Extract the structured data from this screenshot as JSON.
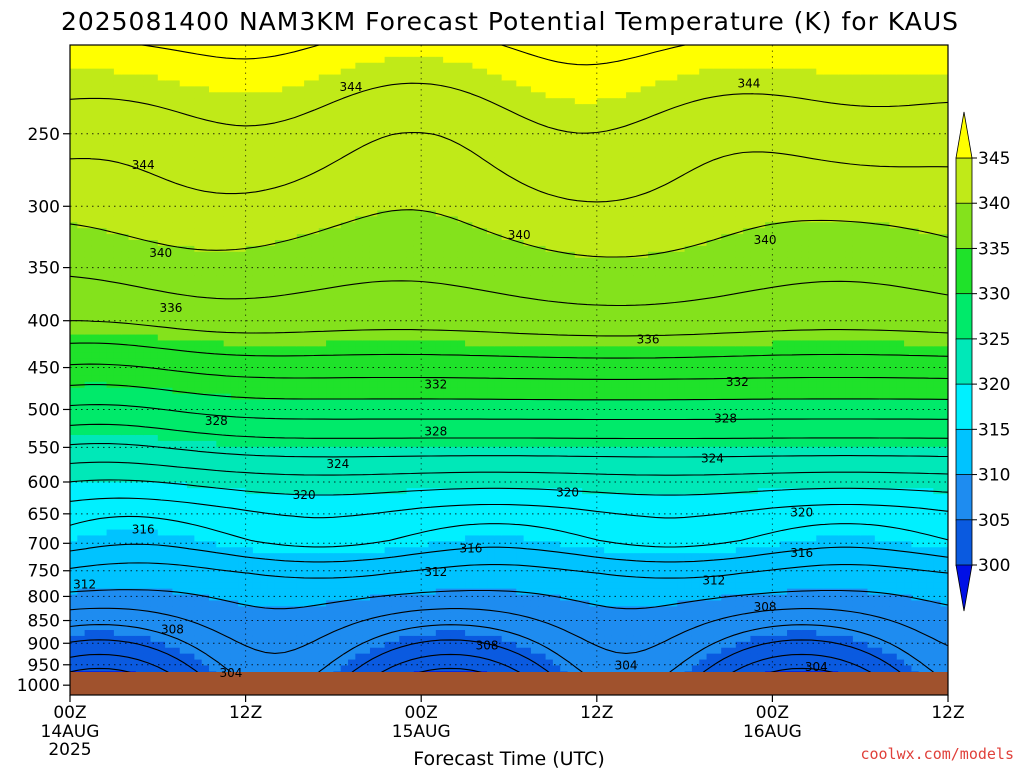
{
  "chart_data": {
    "type": "heatmap",
    "title": "2025081400 NAM3KM Forecast Potential Temperature (K) for KAUS",
    "xlabel": "Forecast Time (UTC)",
    "ylabel": "",
    "x_ticks": [
      {
        "hour": 0,
        "label": "00Z",
        "sub1": "14AUG",
        "sub2": "2025"
      },
      {
        "hour": 12,
        "label": "12Z",
        "sub1": "",
        "sub2": ""
      },
      {
        "hour": 24,
        "label": "00Z",
        "sub1": "15AUG",
        "sub2": ""
      },
      {
        "hour": 36,
        "label": "12Z",
        "sub1": "",
        "sub2": ""
      },
      {
        "hour": 48,
        "label": "00Z",
        "sub1": "16AUG",
        "sub2": ""
      },
      {
        "hour": 60,
        "label": "12Z",
        "sub1": "",
        "sub2": ""
      }
    ],
    "xlim": [
      0,
      60
    ],
    "y_scale": "log-pressure, inverted",
    "ylim": [
      1025,
      200
    ],
    "y_ticks": [
      250,
      300,
      350,
      400,
      450,
      500,
      550,
      600,
      650,
      700,
      750,
      800,
      850,
      900,
      950,
      1000
    ],
    "grid": true,
    "colorbar": {
      "position": "right",
      "ticks": [
        300,
        305,
        310,
        315,
        320,
        325,
        330,
        335,
        340,
        345
      ],
      "colors": [
        "#0010e6",
        "#0a5ae0",
        "#1e8cf0",
        "#00c3ff",
        "#00f0ff",
        "#00e8b8",
        "#00ea6a",
        "#1fe22a",
        "#84e21c",
        "#c0ea18",
        "#ffff00"
      ],
      "under_color": "#0010e6",
      "over_color": "#ffff00"
    },
    "contour_interval": 2,
    "contour_labels": [
      {
        "hour": 19.2,
        "p": 222,
        "value": "344"
      },
      {
        "hour": 46.4,
        "p": 220,
        "value": "344"
      },
      {
        "hour": 5.0,
        "p": 270,
        "value": "344"
      },
      {
        "hour": 6.2,
        "p": 337,
        "value": "340"
      },
      {
        "hour": 30.7,
        "p": 322,
        "value": "340"
      },
      {
        "hour": 47.5,
        "p": 326,
        "value": "340"
      },
      {
        "hour": 6.9,
        "p": 387,
        "value": "336"
      },
      {
        "hour": 39.5,
        "p": 419,
        "value": "336"
      },
      {
        "hour": 25.0,
        "p": 469,
        "value": "332"
      },
      {
        "hour": 45.6,
        "p": 466,
        "value": "332"
      },
      {
        "hour": 10.0,
        "p": 514,
        "value": "328"
      },
      {
        "hour": 25.0,
        "p": 528,
        "value": "328"
      },
      {
        "hour": 44.8,
        "p": 511,
        "value": "328"
      },
      {
        "hour": 18.3,
        "p": 573,
        "value": "324"
      },
      {
        "hour": 43.9,
        "p": 565,
        "value": "324"
      },
      {
        "hour": 16.0,
        "p": 619,
        "value": "320"
      },
      {
        "hour": 34.0,
        "p": 615,
        "value": "320"
      },
      {
        "hour": 50.0,
        "p": 647,
        "value": "320"
      },
      {
        "hour": 5.0,
        "p": 675,
        "value": "316"
      },
      {
        "hour": 27.4,
        "p": 708,
        "value": "316"
      },
      {
        "hour": 50.0,
        "p": 716,
        "value": "316"
      },
      {
        "hour": 1.0,
        "p": 775,
        "value": "312"
      },
      {
        "hour": 25.0,
        "p": 751,
        "value": "312"
      },
      {
        "hour": 44.0,
        "p": 768,
        "value": "312"
      },
      {
        "hour": 7.0,
        "p": 868,
        "value": "308"
      },
      {
        "hour": 28.5,
        "p": 904,
        "value": "308"
      },
      {
        "hour": 47.5,
        "p": 821,
        "value": "308"
      },
      {
        "hour": 11.0,
        "p": 969,
        "value": "304"
      },
      {
        "hour": 38.0,
        "p": 951,
        "value": "304"
      },
      {
        "hour": 51.0,
        "p": 954,
        "value": "304"
      }
    ]
  },
  "credit": "coolwx.com/models"
}
